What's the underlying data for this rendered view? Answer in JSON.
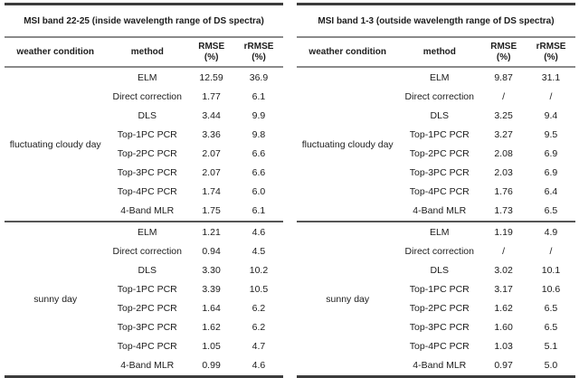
{
  "colors": {
    "text": "#1c1c1c",
    "heavy_rule": "#3c3c3c",
    "medium_rule": "#8a8a8a",
    "group_separator_rule": "#555555",
    "background": "#ffffff"
  },
  "tables": [
    {
      "title": "MSI band 22-25 (inside wavelength range of DS spectra)",
      "headers": {
        "weather": "weather condition",
        "method": "method",
        "rmse": "RMSE\n(%)",
        "rrmse": "rRMSE\n(%)"
      },
      "groups": [
        {
          "weather": "fluctuating cloudy day",
          "rows": [
            {
              "method": "ELM",
              "rmse": "12.59",
              "rrmse": "36.9"
            },
            {
              "method": "Direct correction",
              "rmse": "1.77",
              "rrmse": "6.1"
            },
            {
              "method": "DLS",
              "rmse": "3.44",
              "rrmse": "9.9"
            },
            {
              "method": "Top-1PC PCR",
              "rmse": "3.36",
              "rrmse": "9.8"
            },
            {
              "method": "Top-2PC PCR",
              "rmse": "2.07",
              "rrmse": "6.6"
            },
            {
              "method": "Top-3PC PCR",
              "rmse": "2.07",
              "rrmse": "6.6"
            },
            {
              "method": "Top-4PC PCR",
              "rmse": "1.74",
              "rrmse": "6.0"
            },
            {
              "method": "4-Band MLR",
              "rmse": "1.75",
              "rrmse": "6.1"
            }
          ]
        },
        {
          "weather": "sunny day",
          "rows": [
            {
              "method": "ELM",
              "rmse": "1.21",
              "rrmse": "4.6"
            },
            {
              "method": "Direct correction",
              "rmse": "0.94",
              "rrmse": "4.5"
            },
            {
              "method": "DLS",
              "rmse": "3.30",
              "rrmse": "10.2"
            },
            {
              "method": "Top-1PC PCR",
              "rmse": "3.39",
              "rrmse": "10.5"
            },
            {
              "method": "Top-2PC PCR",
              "rmse": "1.64",
              "rrmse": "6.2"
            },
            {
              "method": "Top-3PC PCR",
              "rmse": "1.62",
              "rrmse": "6.2"
            },
            {
              "method": "Top-4PC PCR",
              "rmse": "1.05",
              "rrmse": "4.7"
            },
            {
              "method": "4-Band MLR",
              "rmse": "0.99",
              "rrmse": "4.6"
            }
          ]
        }
      ]
    },
    {
      "title": "MSI band 1-3 (outside wavelength range of DS spectra)",
      "headers": {
        "weather": "weather condition",
        "method": "method",
        "rmse": "RMSE\n(%)",
        "rrmse": "rRMSE\n(%)"
      },
      "groups": [
        {
          "weather": "fluctuating cloudy day",
          "rows": [
            {
              "method": "ELM",
              "rmse": "9.87",
              "rrmse": "31.1"
            },
            {
              "method": "Direct correction",
              "rmse": "/",
              "rrmse": "/"
            },
            {
              "method": "DLS",
              "rmse": "3.25",
              "rrmse": "9.4"
            },
            {
              "method": "Top-1PC PCR",
              "rmse": "3.27",
              "rrmse": "9.5"
            },
            {
              "method": "Top-2PC PCR",
              "rmse": "2.08",
              "rrmse": "6.9"
            },
            {
              "method": "Top-3PC PCR",
              "rmse": "2.03",
              "rrmse": "6.9"
            },
            {
              "method": "Top-4PC PCR",
              "rmse": "1.76",
              "rrmse": "6.4"
            },
            {
              "method": "4-Band MLR",
              "rmse": "1.73",
              "rrmse": "6.5"
            }
          ]
        },
        {
          "weather": "sunny day",
          "rows": [
            {
              "method": "ELM",
              "rmse": "1.19",
              "rrmse": "4.9"
            },
            {
              "method": "Direct correction",
              "rmse": "/",
              "rrmse": "/"
            },
            {
              "method": "DLS",
              "rmse": "3.02",
              "rrmse": "10.1"
            },
            {
              "method": "Top-1PC PCR",
              "rmse": "3.17",
              "rrmse": "10.6"
            },
            {
              "method": "Top-2PC PCR",
              "rmse": "1.62",
              "rrmse": "6.5"
            },
            {
              "method": "Top-3PC PCR",
              "rmse": "1.60",
              "rrmse": "6.5"
            },
            {
              "method": "Top-4PC PCR",
              "rmse": "1.03",
              "rrmse": "5.1"
            },
            {
              "method": "4-Band MLR",
              "rmse": "0.97",
              "rrmse": "5.0"
            }
          ]
        }
      ]
    }
  ]
}
